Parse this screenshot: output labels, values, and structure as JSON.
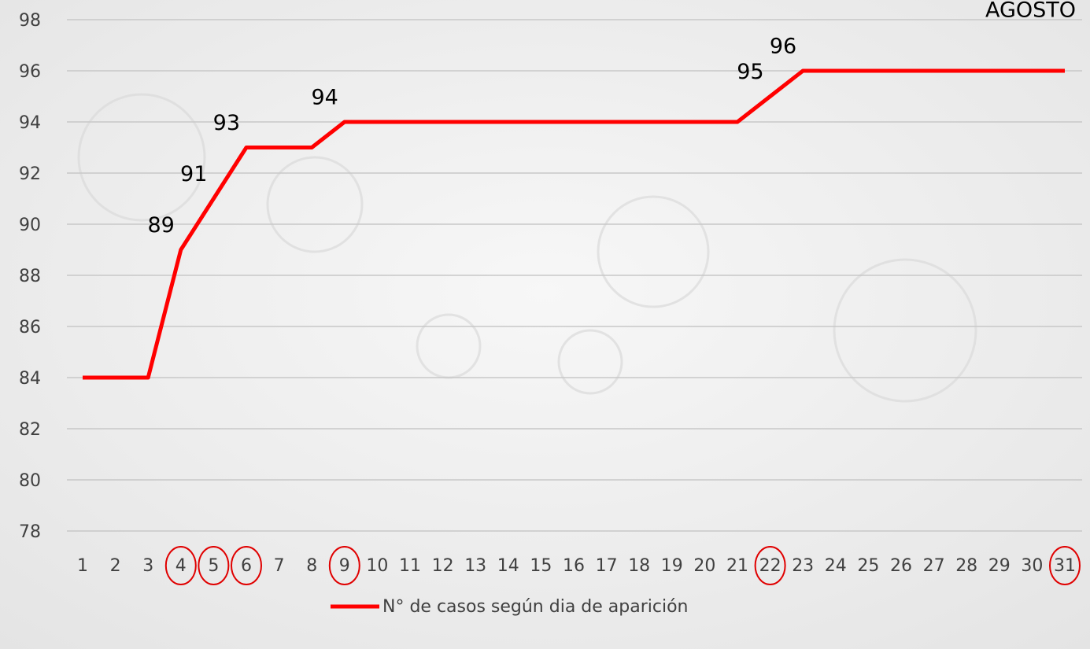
{
  "chart_data": {
    "type": "line",
    "title": "AGOSTO",
    "categories": [
      "1",
      "2",
      "3",
      "4",
      "5",
      "6",
      "7",
      "8",
      "9",
      "10",
      "11",
      "12",
      "13",
      "14",
      "15",
      "16",
      "17",
      "18",
      "19",
      "20",
      "21",
      "22",
      "23",
      "24",
      "25",
      "26",
      "27",
      "28",
      "29",
      "30",
      "31"
    ],
    "series": [
      {
        "name": "N° de casos según dia de aparición",
        "color": "#ff0000",
        "values": [
          84,
          84,
          84,
          89,
          91,
          93,
          93,
          93,
          94,
          94,
          94,
          94,
          94,
          94,
          94,
          94,
          94,
          94,
          94,
          94,
          94,
          95,
          96,
          96,
          96,
          96,
          96,
          96,
          96,
          96,
          96
        ],
        "value_labels": [
          null,
          null,
          null,
          "89",
          "91",
          "93",
          null,
          null,
          "94",
          null,
          null,
          null,
          null,
          null,
          null,
          null,
          null,
          null,
          null,
          null,
          null,
          "95",
          "96",
          null,
          null,
          null,
          null,
          null,
          null,
          null,
          null
        ]
      }
    ],
    "ylim": [
      78,
      98
    ],
    "yticks": [
      78,
      80,
      82,
      84,
      86,
      88,
      90,
      92,
      94,
      96,
      98
    ],
    "grid": true,
    "legend": "bottom"
  }
}
